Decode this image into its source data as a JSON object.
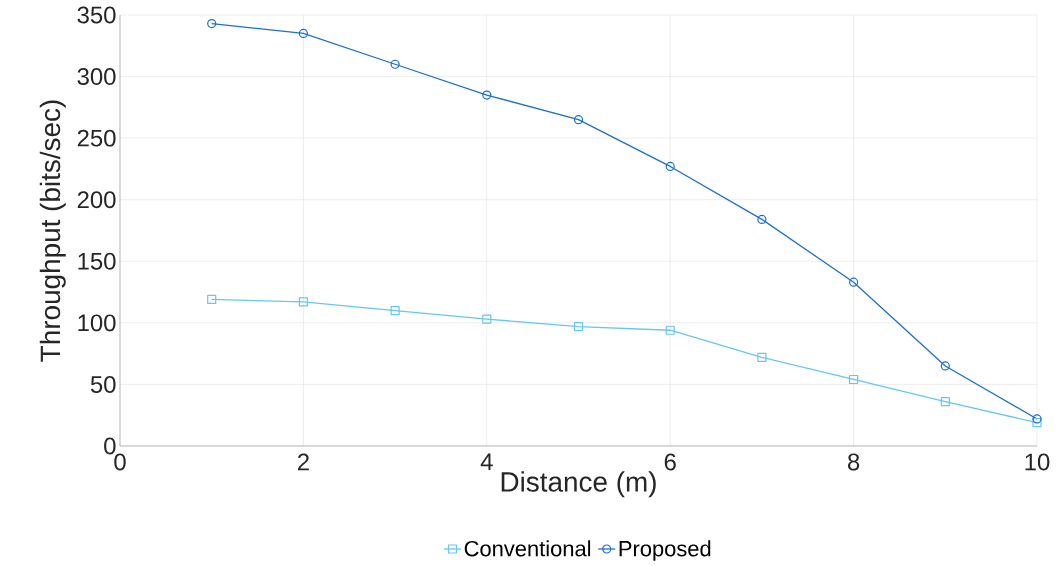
{
  "chart_data": {
    "type": "line",
    "xlabel": "Distance (m)",
    "ylabel": "Throughput (bits/sec)",
    "x": [
      1,
      2,
      3,
      4,
      5,
      6,
      7,
      8,
      9,
      10
    ],
    "series": [
      {
        "name": "Conventional",
        "color": "#66c6f4",
        "marker": "square",
        "values": [
          119,
          117,
          110,
          103,
          97,
          94,
          72,
          54,
          36,
          19
        ]
      },
      {
        "name": "Proposed",
        "color": "#1c6fd1",
        "marker": "circle",
        "values": [
          343,
          335,
          310,
          285,
          265,
          227,
          184,
          133,
          65,
          22
        ]
      }
    ],
    "xlim": [
      0,
      10
    ],
    "xticks": [
      0,
      2,
      4,
      6,
      8,
      10
    ],
    "ylim": [
      0,
      350
    ],
    "yticks": [
      0,
      50,
      100,
      150,
      200,
      250,
      300,
      350
    ],
    "grid": true,
    "legend": "bottom",
    "line_style": "solid"
  }
}
